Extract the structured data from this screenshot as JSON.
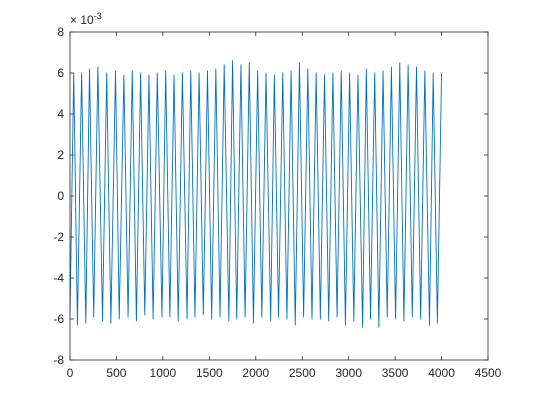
{
  "chart_data": {
    "type": "line",
    "title": "",
    "xlabel": "",
    "ylabel": "",
    "xlim": [
      0,
      4500
    ],
    "ylim": [
      -8,
      8
    ],
    "xticks": [
      0,
      500,
      1000,
      1500,
      2000,
      2500,
      3000,
      3500,
      4000,
      4500
    ],
    "yticks": [
      -8,
      -6,
      -4,
      -2,
      0,
      2,
      4,
      6,
      8
    ],
    "xtick_labels": [
      "0",
      "500",
      "1000",
      "1500",
      "2000",
      "2500",
      "3000",
      "3500",
      "4000",
      "4500"
    ],
    "ytick_labels": [
      "-8",
      "-6",
      "-4",
      "-2",
      "0",
      "2",
      "4",
      "6",
      "8"
    ],
    "y_exponent_base": "× 10",
    "y_exponent_power": "-3",
    "grid": false,
    "legend": false,
    "color": "#0072BD",
    "series": [
      {
        "x": [
          0,
          40,
          80,
          125,
          170,
          210,
          255,
          300,
          350,
          395,
          440,
          490,
          530,
          580,
          625,
          670,
          715,
          760,
          805,
          850,
          895,
          940,
          990,
          1030,
          1075,
          1120,
          1165,
          1210,
          1260,
          1300,
          1345,
          1390,
          1435,
          1480,
          1525,
          1570,
          1615,
          1660,
          1710,
          1750,
          1795,
          1840,
          1885,
          1930,
          1975,
          2020,
          2065,
          2110,
          2160,
          2200,
          2245,
          2290,
          2335,
          2380,
          2425,
          2470,
          2515,
          2560,
          2605,
          2650,
          2695,
          2740,
          2785,
          2830,
          2875,
          2920,
          2965,
          3010,
          3055,
          3100,
          3150,
          3190,
          3235,
          3280,
          3325,
          3370,
          3415,
          3460,
          3505,
          3550,
          3595,
          3640,
          3685,
          3730,
          3775,
          3820,
          3870,
          3910,
          3955,
          4000
        ],
        "y": [
          -5.8,
          6.0,
          -6.3,
          6.0,
          -6.2,
          6.2,
          -5.9,
          6.3,
          -6.1,
          6.0,
          -6.2,
          6.1,
          -6.0,
          5.9,
          -5.9,
          6.1,
          -6.1,
          6.0,
          -5.8,
          5.9,
          -6.0,
          6.0,
          -5.9,
          6.1,
          -5.9,
          5.9,
          -6.1,
          6.0,
          -6.0,
          6.1,
          -5.9,
          6.0,
          -5.8,
          6.1,
          -6.0,
          6.2,
          -5.9,
          6.4,
          -6.1,
          6.6,
          -6.0,
          6.4,
          -5.9,
          6.5,
          -6.2,
          6.1,
          -5.9,
          6.0,
          -6.1,
          5.9,
          -5.9,
          6.0,
          -6.0,
          6.1,
          -6.3,
          6.5,
          -5.9,
          6.2,
          -6.0,
          6.0,
          -6.0,
          5.9,
          -6.1,
          6.0,
          -5.9,
          6.1,
          -6.3,
          6.0,
          -6.1,
          5.9,
          -6.4,
          6.2,
          -6.0,
          6.0,
          -6.4,
          6.1,
          -5.9,
          6.3,
          -6.0,
          6.5,
          -6.1,
          6.4,
          -5.9,
          6.3,
          -6.0,
          6.1,
          -6.3,
          6.0,
          -6.2,
          6.0
        ]
      }
    ]
  }
}
